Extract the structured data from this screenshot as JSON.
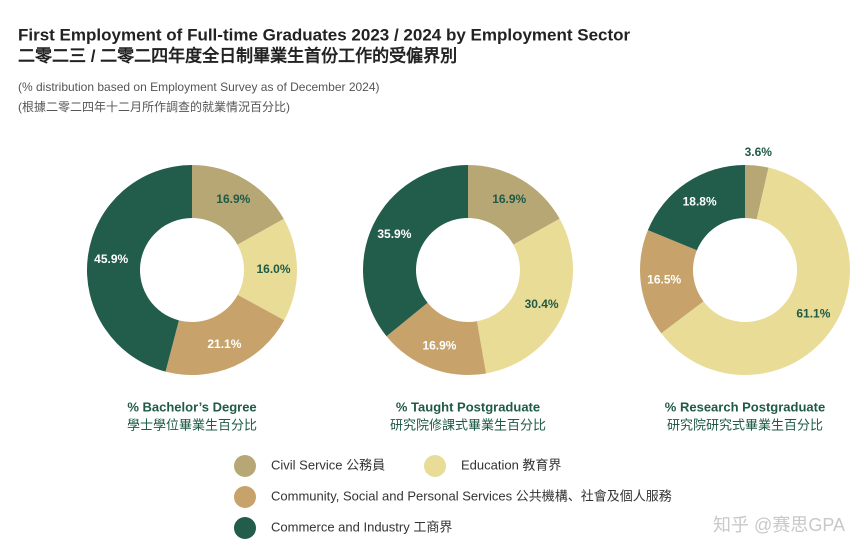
{
  "header": {
    "title": "First Employment of Full-time Graduates 2023 / 2024 by Employment Sector",
    "title_zh": "二零二三 / 二零二四年度全日制畢業生首份工作的受僱界別",
    "note": "(% distribution based on Employment Survey as of December 2024)",
    "note_zh": "(根據二零二四年十二月所作調查的就業情況百分比)",
    "watermark": "知乎 @赛思GPA"
  },
  "chart_data": [
    {
      "type": "pie",
      "title": "% Bachelor’s Degree",
      "subtitle": "學士學位畢業生百分比",
      "categories": [
        "Civil Service 公務員",
        "Education 教育界",
        "Community, Social and Personal Services 公共機構、社會及個人服務",
        "Commerce and Industry 工商界"
      ],
      "values": [
        16.9,
        16.0,
        21.1,
        45.9
      ],
      "value_labels": [
        "16.9%",
        "16.0%",
        "21.1%",
        "45.9%"
      ],
      "colors": [
        "#b6a774",
        "#e9dc96",
        "#c7a26b",
        "#225c4a"
      ],
      "label_colors": [
        "#1f5a47",
        "#1f5a47",
        "#ffffff",
        "#ffffff"
      ]
    },
    {
      "type": "pie",
      "title": "% Taught Postgraduate",
      "subtitle": "研究院修課式畢業生百分比",
      "categories": [
        "Civil Service 公務員",
        "Education 教育界",
        "Community, Social and Personal Services 公共機構、社會及個人服務",
        "Commerce and Industry 工商界"
      ],
      "values": [
        16.9,
        30.4,
        16.9,
        35.9
      ],
      "value_labels": [
        "16.9%",
        "30.4%",
        "16.9%",
        "35.9%"
      ],
      "colors": [
        "#b6a774",
        "#e9dc96",
        "#c7a26b",
        "#225c4a"
      ],
      "label_colors": [
        "#1f5a47",
        "#1f5a47",
        "#ffffff",
        "#ffffff"
      ]
    },
    {
      "type": "pie",
      "title": "% Research Postgraduate",
      "subtitle": "研究院研究式畢業生百分比",
      "categories": [
        "Civil Service 公務員",
        "Education 教育界",
        "Community, Social and Personal Services 公共機構、社會及個人服務",
        "Commerce and Industry 工商界"
      ],
      "values": [
        3.6,
        61.1,
        16.5,
        18.8
      ],
      "value_labels": [
        "3.6%",
        "61.1%",
        "16.5%",
        "18.8%"
      ],
      "colors": [
        "#b6a774",
        "#e9dc96",
        "#c7a26b",
        "#225c4a"
      ],
      "label_colors": [
        "#1f5a47",
        "#1f5a47",
        "#ffffff",
        "#ffffff"
      ]
    }
  ]
}
